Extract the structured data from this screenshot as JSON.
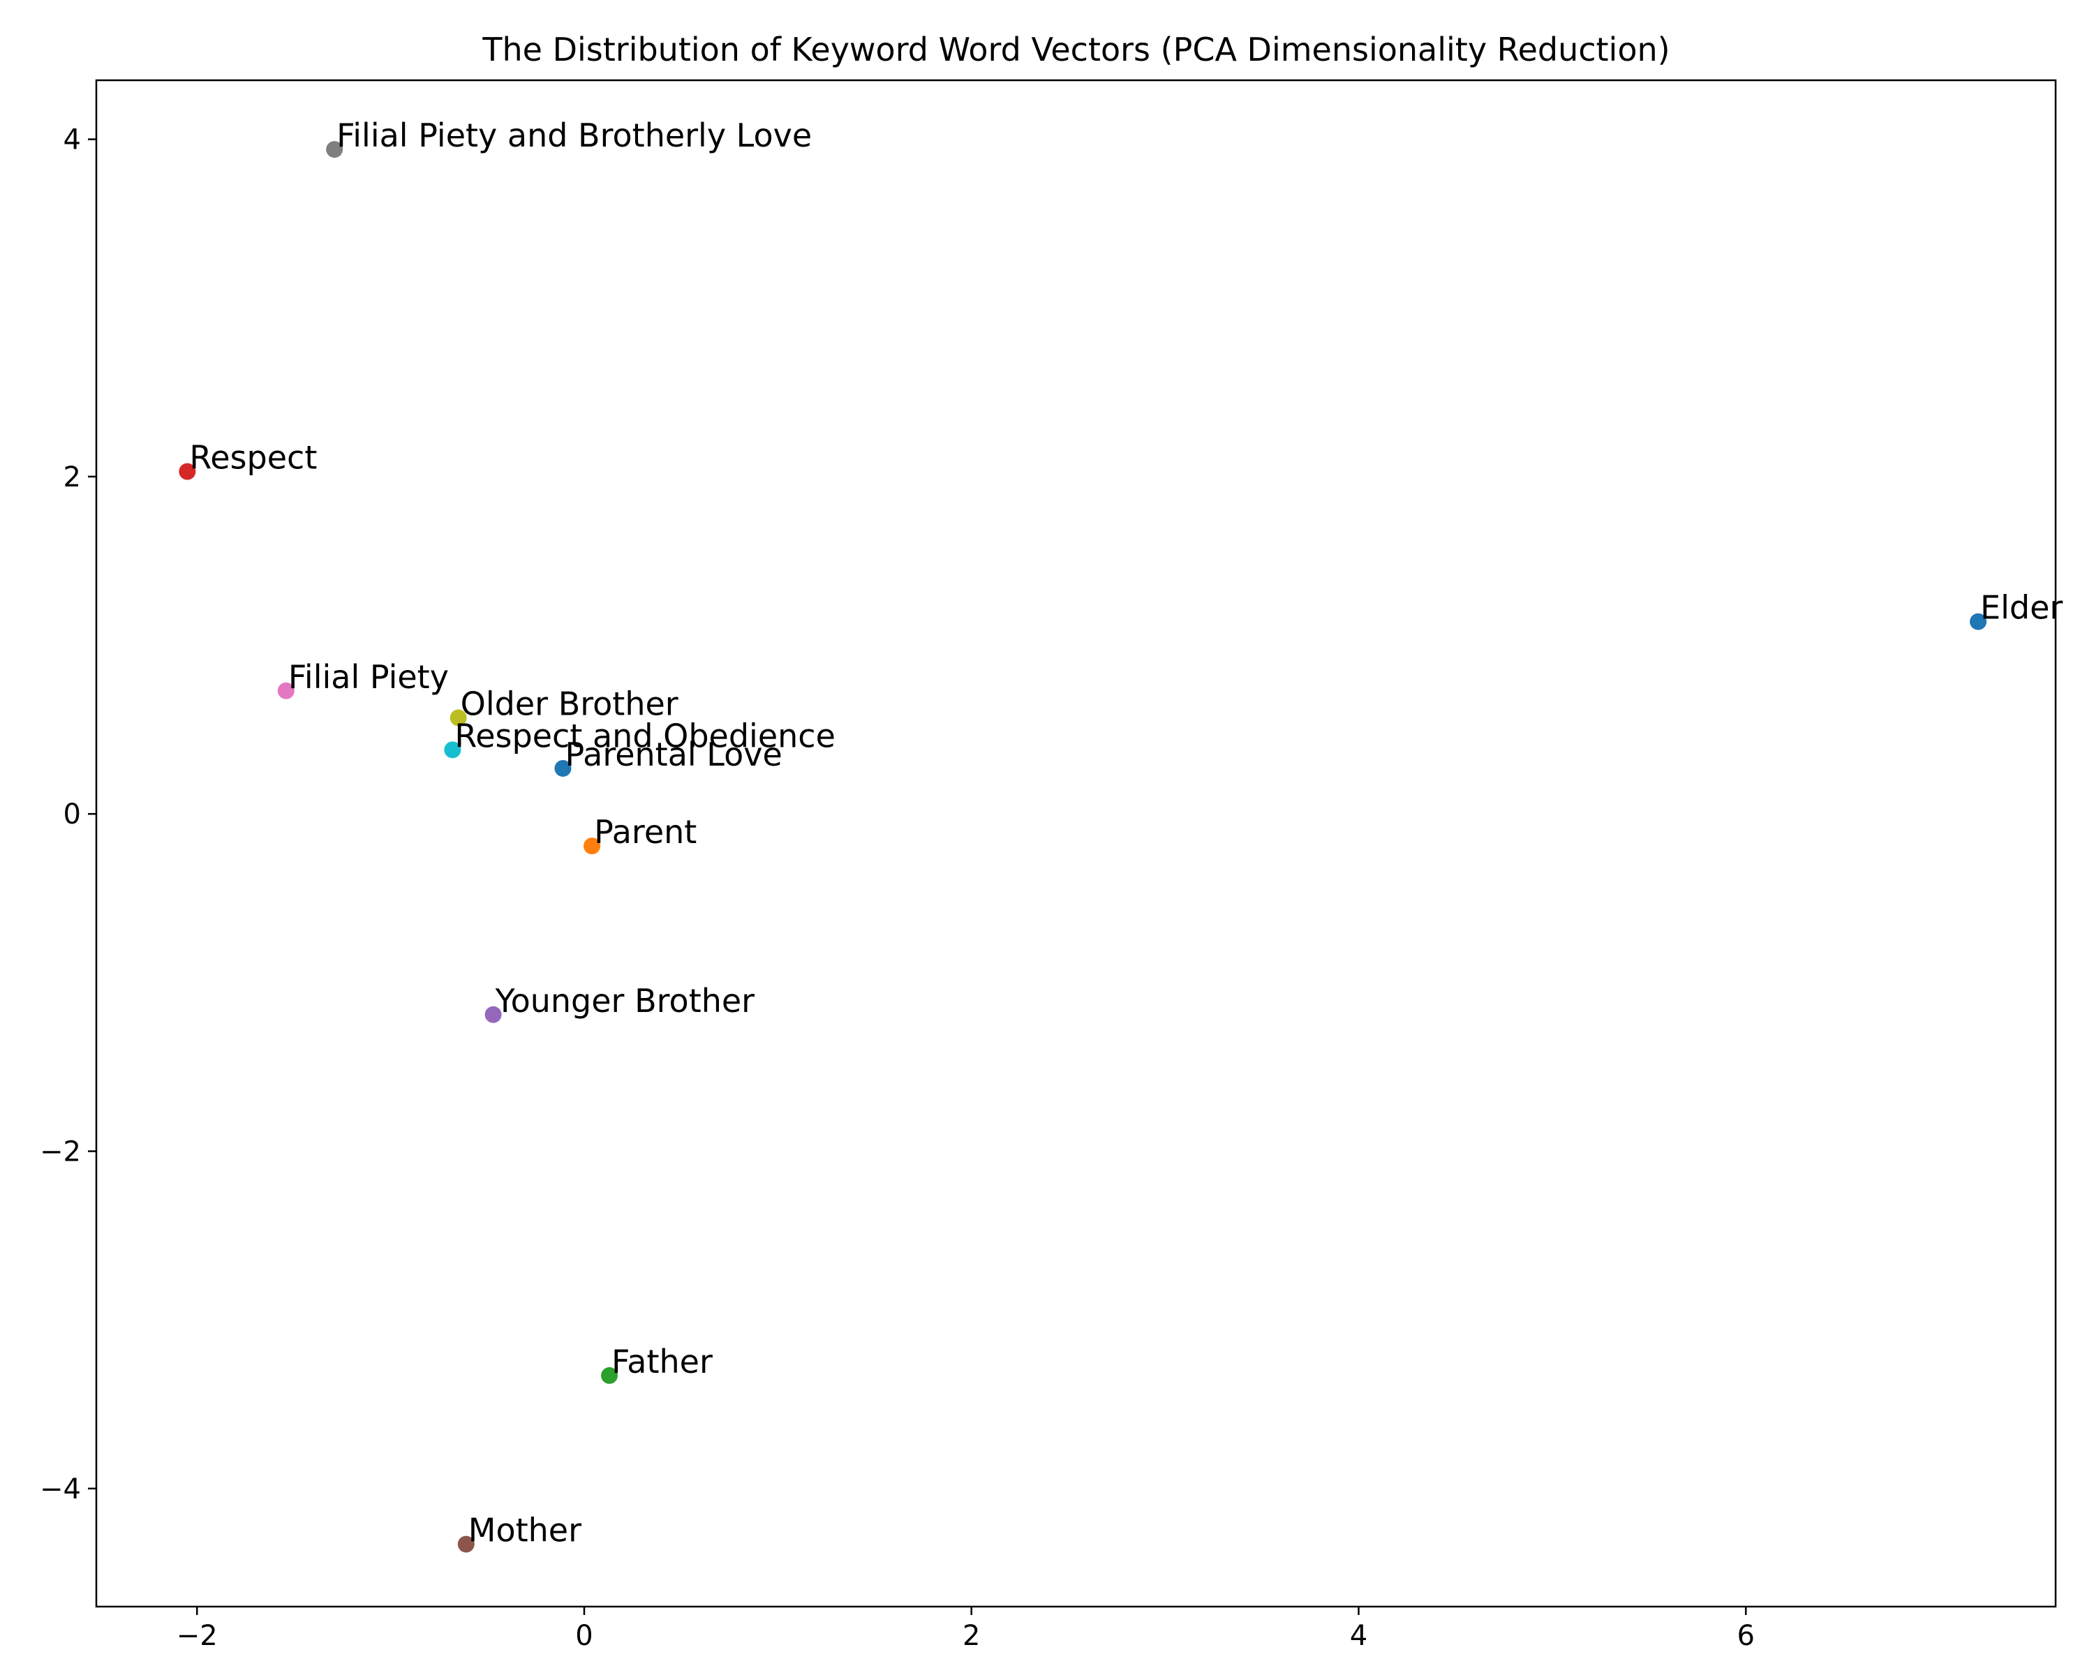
{
  "chart_data": {
    "type": "scatter",
    "title": "The Distribution of Keyword Word Vectors (PCA Dimensionality Reduction)",
    "xlabel": "",
    "ylabel": "",
    "xlim": [
      -2.52,
      7.6
    ],
    "ylim": [
      -4.7,
      4.35
    ],
    "xticks": [
      -2,
      0,
      2,
      4,
      6
    ],
    "yticks": [
      -4,
      -2,
      0,
      2,
      4
    ],
    "xtick_labels": [
      "−2",
      "0",
      "2",
      "4",
      "6"
    ],
    "ytick_labels": [
      "−4",
      "−2",
      "0",
      "2",
      "4"
    ],
    "grid": false,
    "legend": false,
    "points": [
      {
        "label": "Elder",
        "x": 7.2,
        "y": 1.14,
        "color": "#1f77b4"
      },
      {
        "label": "Parent",
        "x": 0.04,
        "y": -0.19,
        "color": "#ff7f0e"
      },
      {
        "label": "Father",
        "x": 0.13,
        "y": -3.33,
        "color": "#2ca02c"
      },
      {
        "label": "Respect",
        "x": -2.05,
        "y": 2.03,
        "color": "#d62728"
      },
      {
        "label": "Younger Brother",
        "x": -0.47,
        "y": -1.19,
        "color": "#9467bd"
      },
      {
        "label": "Mother",
        "x": -0.61,
        "y": -4.33,
        "color": "#8c564b"
      },
      {
        "label": "Filial Piety",
        "x": -1.54,
        "y": 0.73,
        "color": "#e377c2"
      },
      {
        "label": "Filial Piety and Brotherly Love",
        "x": -1.29,
        "y": 3.94,
        "color": "#7f7f7f"
      },
      {
        "label": "Older Brother",
        "x": -0.65,
        "y": 0.57,
        "color": "#bcbd22"
      },
      {
        "label": "Respect and Obedience",
        "x": -0.68,
        "y": 0.38,
        "color": "#17becf"
      },
      {
        "label": "Parental Love",
        "x": -0.11,
        "y": 0.27,
        "color": "#1f77b4"
      }
    ]
  }
}
